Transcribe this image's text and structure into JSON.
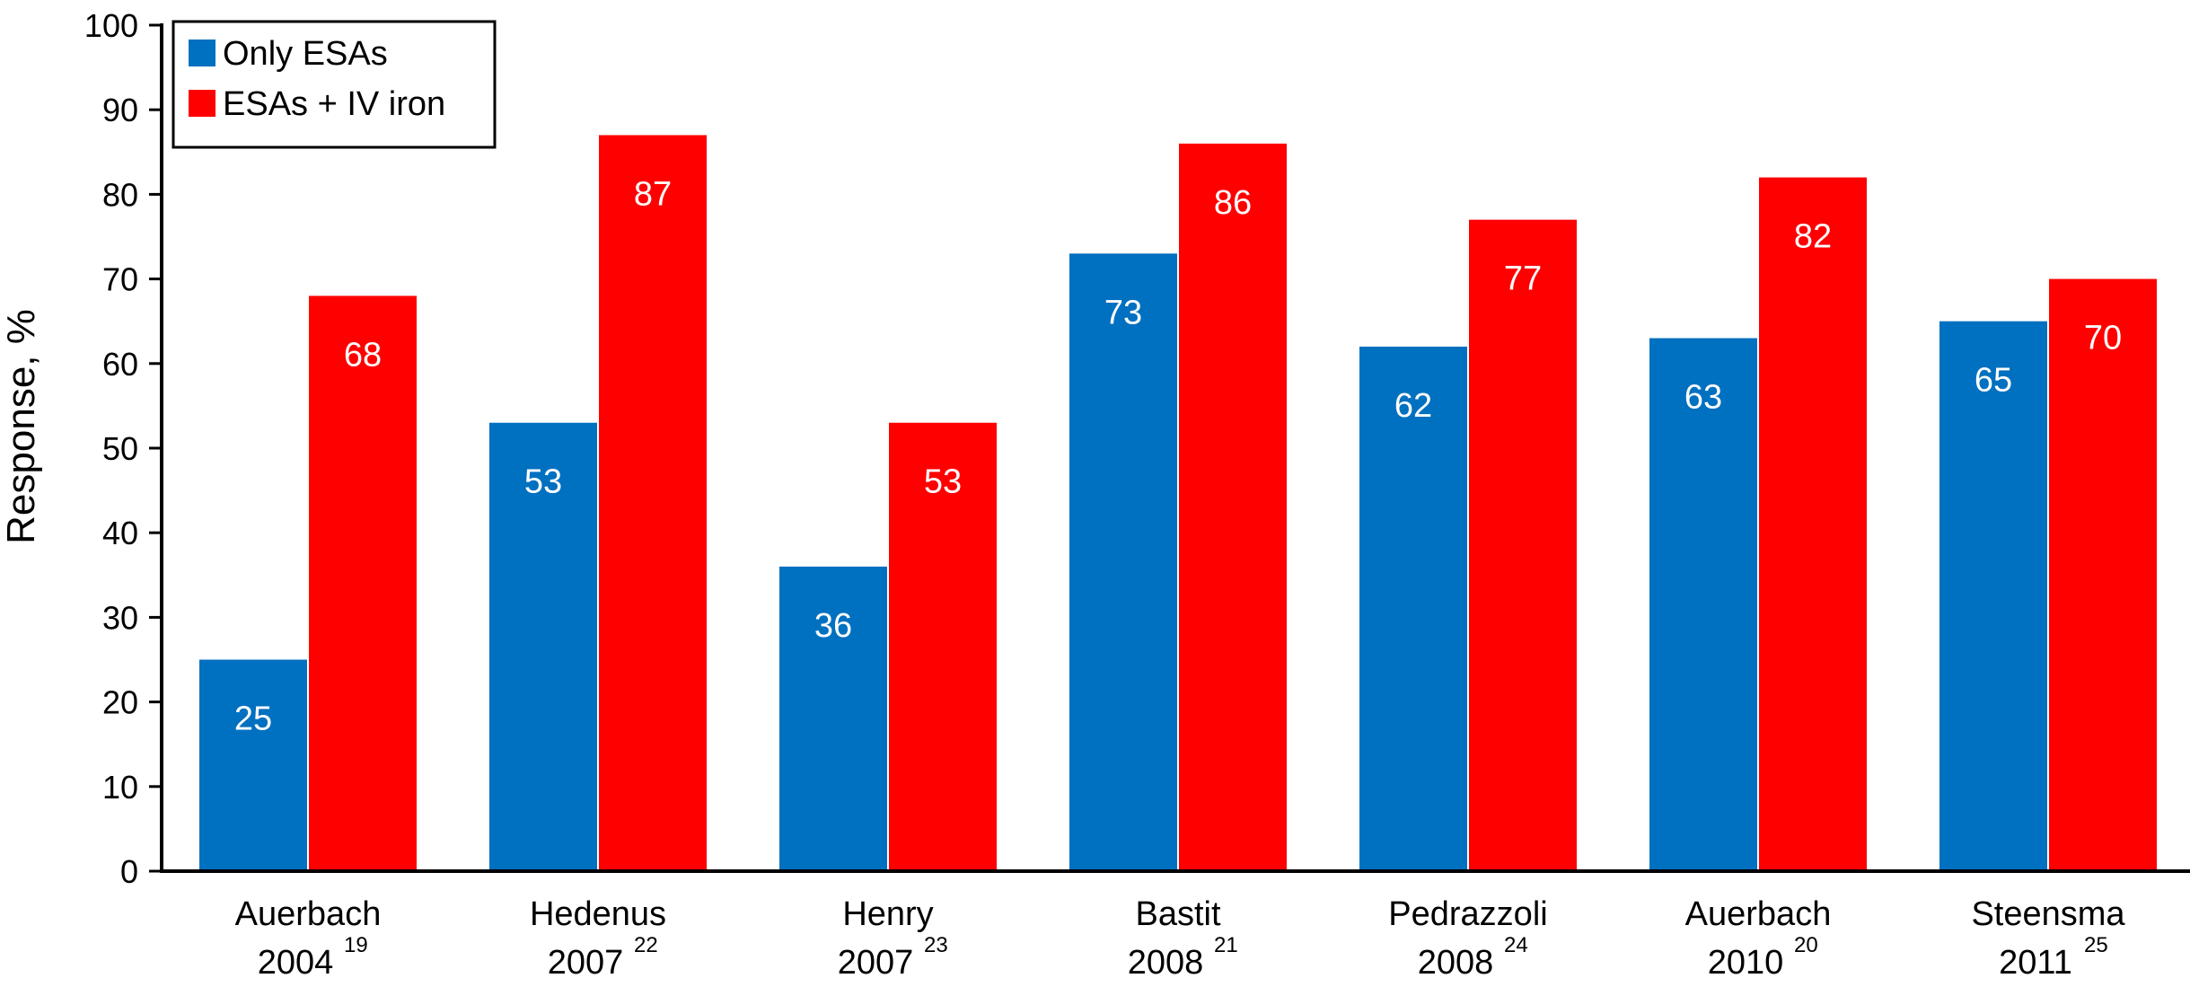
{
  "chart_data": {
    "type": "bar",
    "ylabel": "Response, %",
    "ylim": [
      0,
      100
    ],
    "yticks": [
      0,
      10,
      20,
      30,
      40,
      50,
      60,
      70,
      80,
      90,
      100
    ],
    "grid": false,
    "legend_position": "top-left",
    "categories": [
      {
        "name": "Auerbach",
        "year": "2004",
        "ref": "19"
      },
      {
        "name": "Hedenus",
        "year": "2007",
        "ref": "22"
      },
      {
        "name": "Henry",
        "year": "2007",
        "ref": "23"
      },
      {
        "name": "Bastit",
        "year": "2008",
        "ref": "21"
      },
      {
        "name": "Pedrazzoli",
        "year": "2008",
        "ref": "24"
      },
      {
        "name": "Auerbach",
        "year": "2010",
        "ref": "20"
      },
      {
        "name": "Steensma",
        "year": "2011",
        "ref": "25"
      }
    ],
    "series": [
      {
        "name": "Only ESAs",
        "color": "#0070c0",
        "values": [
          25,
          53,
          36,
          73,
          62,
          63,
          65
        ]
      },
      {
        "name": "ESAs + IV iron",
        "color": "#ff0000",
        "values": [
          68,
          87,
          53,
          86,
          77,
          82,
          70
        ]
      }
    ]
  }
}
